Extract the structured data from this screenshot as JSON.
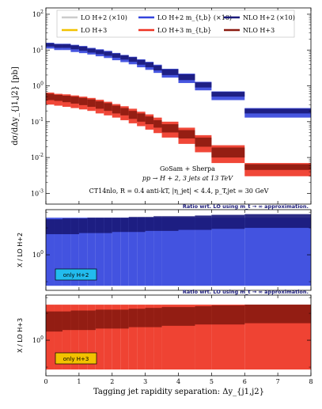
{
  "chart_data": {
    "type": "area",
    "xlabel": "Tagging jet rapidity separation:  Δy_{j1,j2}",
    "xlim": [
      0,
      8
    ],
    "x_ticks": [
      "0",
      "1",
      "2",
      "3",
      "4",
      "5",
      "6",
      "7",
      "8"
    ],
    "bin_edges": [
      0,
      0.25,
      0.5,
      0.75,
      1.0,
      1.25,
      1.5,
      1.75,
      2.0,
      2.25,
      2.5,
      2.75,
      3.0,
      3.25,
      3.5,
      4.0,
      4.5,
      5.0,
      6.0,
      8.0
    ],
    "main_panel": {
      "ylabel": "dσ/dΔy_{j1,j2} [pb]",
      "yscale": "log",
      "ylim": [
        0.0005,
        150
      ],
      "y_ticks": [
        "10^{-3}",
        "10^{-2}",
        "10^{-1}",
        "10^{0}",
        "10^{1}",
        "10^{2}"
      ],
      "legend": {
        "placement": "top",
        "entries": [
          "LO H+2 (×10)",
          "LO H+2 m_{t,b} (×10)",
          "NLO H+2 (×10)",
          "LO H+3",
          "LO H+3 m_{t,b}",
          "NLO H+3"
        ]
      },
      "annotations": [
        "GoSam + Sherpa",
        "pp → H + 2, 3 jets at 13 TeV",
        "CT14nlo, R = 0.4 anti-kT, |η_jet| < 4.4, p_T,jet = 30 GeV"
      ],
      "series": [
        {
          "name": "LO H+2 m_{t,b} (×10)",
          "color": "#3344dd",
          "lower": [
            11,
            10,
            10,
            8.8,
            8.2,
            7.5,
            6.7,
            6.0,
            5.2,
            4.6,
            4.0,
            3.3,
            2.8,
            2.3,
            1.7,
            1.2,
            0.75,
            0.4,
            0.13
          ],
          "upper": [
            16,
            15,
            15,
            14,
            13,
            11.5,
            10.5,
            9.5,
            8.3,
            7.3,
            6.5,
            5.5,
            4.7,
            3.9,
            3.0,
            2.2,
            1.3,
            0.7,
            0.24
          ]
        },
        {
          "name": "NLO H+2 (×10)",
          "color": "#1a1a7a",
          "lower": [
            12.5,
            11.5,
            11.5,
            10.5,
            9.5,
            8.5,
            7.7,
            6.9,
            6.1,
            5.4,
            4.7,
            3.9,
            3.3,
            2.7,
            2.0,
            1.45,
            0.9,
            0.5,
            0.17
          ],
          "upper": [
            15.5,
            14.5,
            14.5,
            13.5,
            12.5,
            11,
            10,
            9.0,
            8.0,
            7.1,
            6.3,
            5.3,
            4.5,
            3.7,
            2.9,
            2.1,
            1.25,
            0.68,
            0.23
          ]
        },
        {
          "name": "LO H+3 m_{t,b}",
          "color": "#ee3322",
          "lower": [
            0.3,
            0.28,
            0.26,
            0.24,
            0.22,
            0.2,
            0.17,
            0.15,
            0.13,
            0.11,
            0.09,
            0.075,
            0.06,
            0.048,
            0.036,
            0.024,
            0.014,
            0.007,
            0.003
          ],
          "upper": [
            0.65,
            0.6,
            0.58,
            0.54,
            0.5,
            0.46,
            0.41,
            0.36,
            0.31,
            0.27,
            0.23,
            0.19,
            0.16,
            0.13,
            0.1,
            0.068,
            0.042,
            0.022,
            0.007
          ]
        },
        {
          "name": "NLO H+3",
          "color": "#8b1a10",
          "lower": [
            0.4,
            0.38,
            0.35,
            0.32,
            0.29,
            0.26,
            0.23,
            0.2,
            0.17,
            0.15,
            0.12,
            0.1,
            0.085,
            0.068,
            0.05,
            0.034,
            0.02,
            0.01,
            0.0045
          ],
          "upper": [
            0.6,
            0.56,
            0.53,
            0.5,
            0.46,
            0.42,
            0.37,
            0.33,
            0.28,
            0.24,
            0.2,
            0.17,
            0.14,
            0.11,
            0.085,
            0.058,
            0.036,
            0.019,
            0.0065
          ]
        }
      ]
    },
    "ratio_panels": [
      {
        "title": "Ratio wrt. LO using m_t → ∞ approximation.",
        "ylabel": "X / LO H+2",
        "yscale": "log",
        "ylim": [
          0.4,
          3.2
        ],
        "y_ticks": [
          "10^{0}"
        ],
        "label": "only H+2",
        "label_color": "#22bbee",
        "bands": [
          {
            "name": "LO H+2 m_{t,b}",
            "color": "#3344dd",
            "lower": [
              0.45,
              0.45,
              0.45,
              0.45,
              0.45,
              0.45,
              0.45,
              0.45,
              0.45,
              0.45,
              0.45,
              0.45,
              0.45,
              0.45,
              0.45,
              0.45,
              0.45,
              0.45,
              0.45
            ],
            "upper": [
              2.6,
              2.6,
              2.6,
              2.6,
              2.6,
              2.6,
              2.6,
              2.6,
              2.6,
              2.6,
              2.6,
              2.6,
              2.6,
              2.6,
              2.6,
              2.6,
              2.6,
              2.6,
              2.6
            ]
          },
          {
            "name": "NLO H+2",
            "color": "#1a1a7a",
            "lower": [
              1.7,
              1.7,
              1.7,
              1.7,
              1.75,
              1.75,
              1.75,
              1.75,
              1.8,
              1.8,
              1.8,
              1.8,
              1.85,
              1.85,
              1.85,
              1.9,
              1.9,
              1.95,
              2.0
            ],
            "upper": [
              2.5,
              2.5,
              2.55,
              2.55,
              2.55,
              2.6,
              2.6,
              2.6,
              2.6,
              2.6,
              2.65,
              2.65,
              2.65,
              2.7,
              2.7,
              2.7,
              2.75,
              2.8,
              2.85
            ]
          }
        ]
      },
      {
        "title": "Ratio wrt. LO using m_t → ∞ approximation.",
        "ylabel": "X / LO H+3",
        "yscale": "log",
        "ylim": [
          0.4,
          3.2
        ],
        "y_ticks": [
          "10^{0}"
        ],
        "label": "only H+3",
        "label_color": "#f2c200",
        "bands": [
          {
            "name": "LO H+3 m_{t,b}",
            "color": "#ee3322",
            "lower": [
              0.47,
              0.47,
              0.47,
              0.47,
              0.47,
              0.47,
              0.47,
              0.47,
              0.47,
              0.47,
              0.47,
              0.47,
              0.47,
              0.47,
              0.47,
              0.47,
              0.47,
              0.47,
              0.47
            ],
            "upper": [
              2.5,
              2.5,
              2.5,
              2.5,
              2.5,
              2.5,
              2.5,
              2.5,
              2.5,
              2.5,
              2.5,
              2.5,
              2.5,
              2.5,
              2.5,
              2.5,
              2.5,
              2.5,
              2.5
            ]
          },
          {
            "name": "NLO H+3",
            "color": "#8b1a10",
            "lower": [
              1.25,
              1.25,
              1.3,
              1.3,
              1.3,
              1.3,
              1.35,
              1.35,
              1.35,
              1.35,
              1.4,
              1.4,
              1.4,
              1.4,
              1.45,
              1.45,
              1.5,
              1.5,
              1.55
            ],
            "upper": [
              2.1,
              2.1,
              2.1,
              2.15,
              2.15,
              2.15,
              2.2,
              2.2,
              2.2,
              2.2,
              2.25,
              2.25,
              2.3,
              2.3,
              2.35,
              2.35,
              2.4,
              2.45,
              2.5
            ]
          }
        ]
      }
    ]
  }
}
